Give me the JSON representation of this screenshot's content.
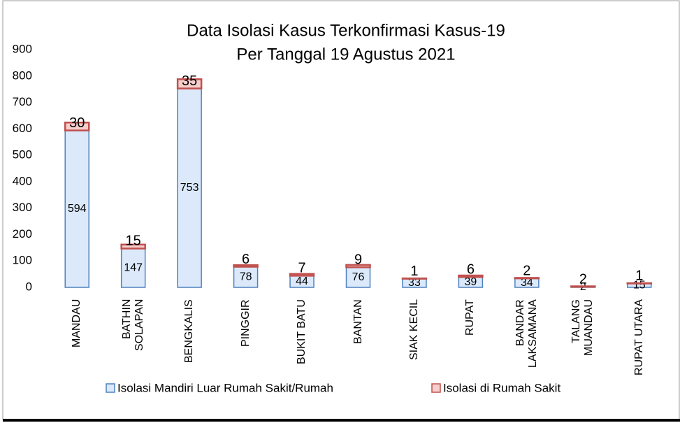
{
  "chart_data": {
    "type": "stacked_bar",
    "title": "Data Isolasi Kasus Terkonfirmasi Kasus-19",
    "subtitle": "Per Tanggal 19 Agustus 2021",
    "categories": [
      "MANDAU",
      "BATHIN\nSOLAPAN",
      "BENGKALIS",
      "PINGGIR",
      "BUKIT BATU",
      "BANTAN",
      "SIAK KECIL",
      "RUPAT",
      "BANDAR\nLAKSAMANA",
      "TALANG\nMUANDAU",
      "RUPAT UTARA"
    ],
    "series": [
      {
        "name": "Isolasi Mandiri Luar Rumah Sakit/Rumah",
        "color": "#4f81bd",
        "fill": "#dbe9fb",
        "values": [
          594,
          147,
          753,
          78,
          44,
          76,
          33,
          39,
          34,
          2,
          15
        ]
      },
      {
        "name": "Isolasi di Rumah Sakit",
        "color": "#c0504d",
        "fill": "#f6cfcc",
        "values": [
          30,
          15,
          35,
          6,
          7,
          9,
          1,
          6,
          2,
          2,
          1
        ]
      }
    ],
    "ylim": [
      0,
      900
    ],
    "yticks": [
      0,
      100,
      200,
      300,
      400,
      500,
      600,
      700,
      800,
      900
    ]
  }
}
